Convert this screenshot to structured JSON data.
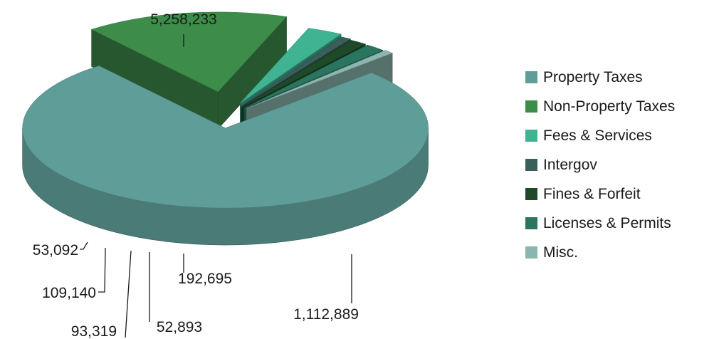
{
  "chart_data": {
    "type": "pie",
    "style": "3d-exploded",
    "title": "",
    "legend_position": "right",
    "slices": [
      {
        "name": "Property Taxes",
        "value": 5258233,
        "label": "5,258,233",
        "color": "#5f9e98"
      },
      {
        "name": "Non-Property Taxes",
        "value": 1112889,
        "label": "1,112,889",
        "color": "#3d8c4a"
      },
      {
        "name": "Fees & Services",
        "value": 192695,
        "label": "192,695",
        "color": "#3fb392"
      },
      {
        "name": "Intergov",
        "value": 52893,
        "label": "52,893",
        "color": "#3a5e5a"
      },
      {
        "name": "Fines & Forfeit",
        "value": 93319,
        "label": "93,319",
        "color": "#1f4a2a"
      },
      {
        "name": "Licenses & Permits",
        "value": 109140,
        "label": "109,140",
        "color": "#2a7560"
      },
      {
        "name": "Misc.",
        "value": 53092,
        "label": "53,092",
        "color": "#8bb5ae"
      }
    ]
  }
}
